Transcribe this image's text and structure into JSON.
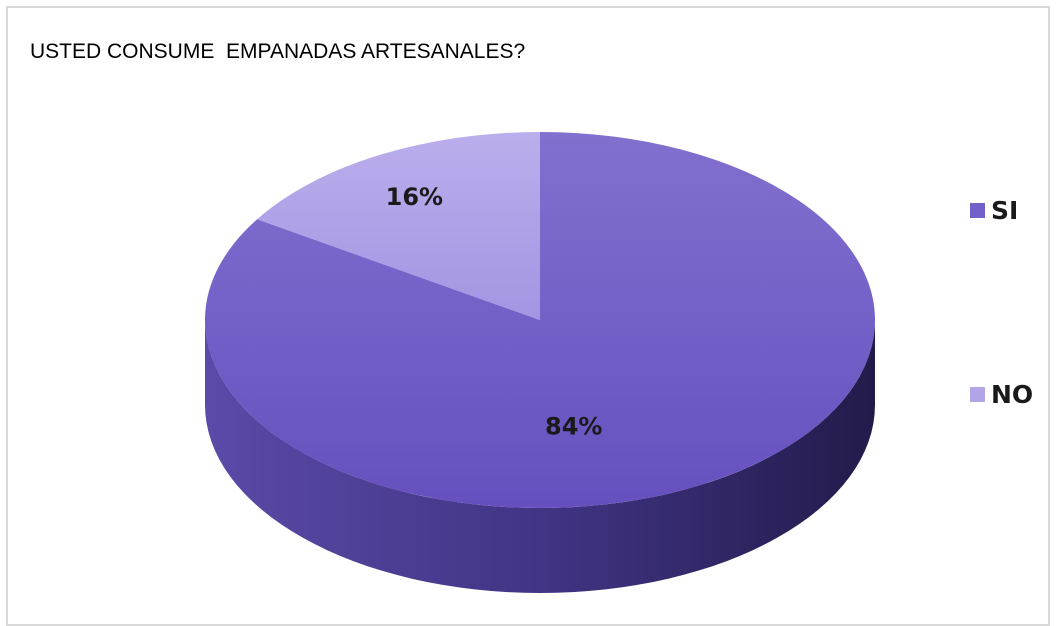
{
  "chart_data": {
    "type": "pie",
    "title": "USTED CONSUME  EMPANADAS ARTESANALES?",
    "categories": [
      "SI",
      "NO"
    ],
    "values": [
      84,
      16
    ],
    "value_labels": [
      "84%",
      "16%"
    ],
    "colors": [
      "#7360c8",
      "#b3a4ea"
    ],
    "legend": {
      "position": "right",
      "entries": [
        "SI",
        "NO"
      ]
    },
    "style": "3d-pie"
  }
}
